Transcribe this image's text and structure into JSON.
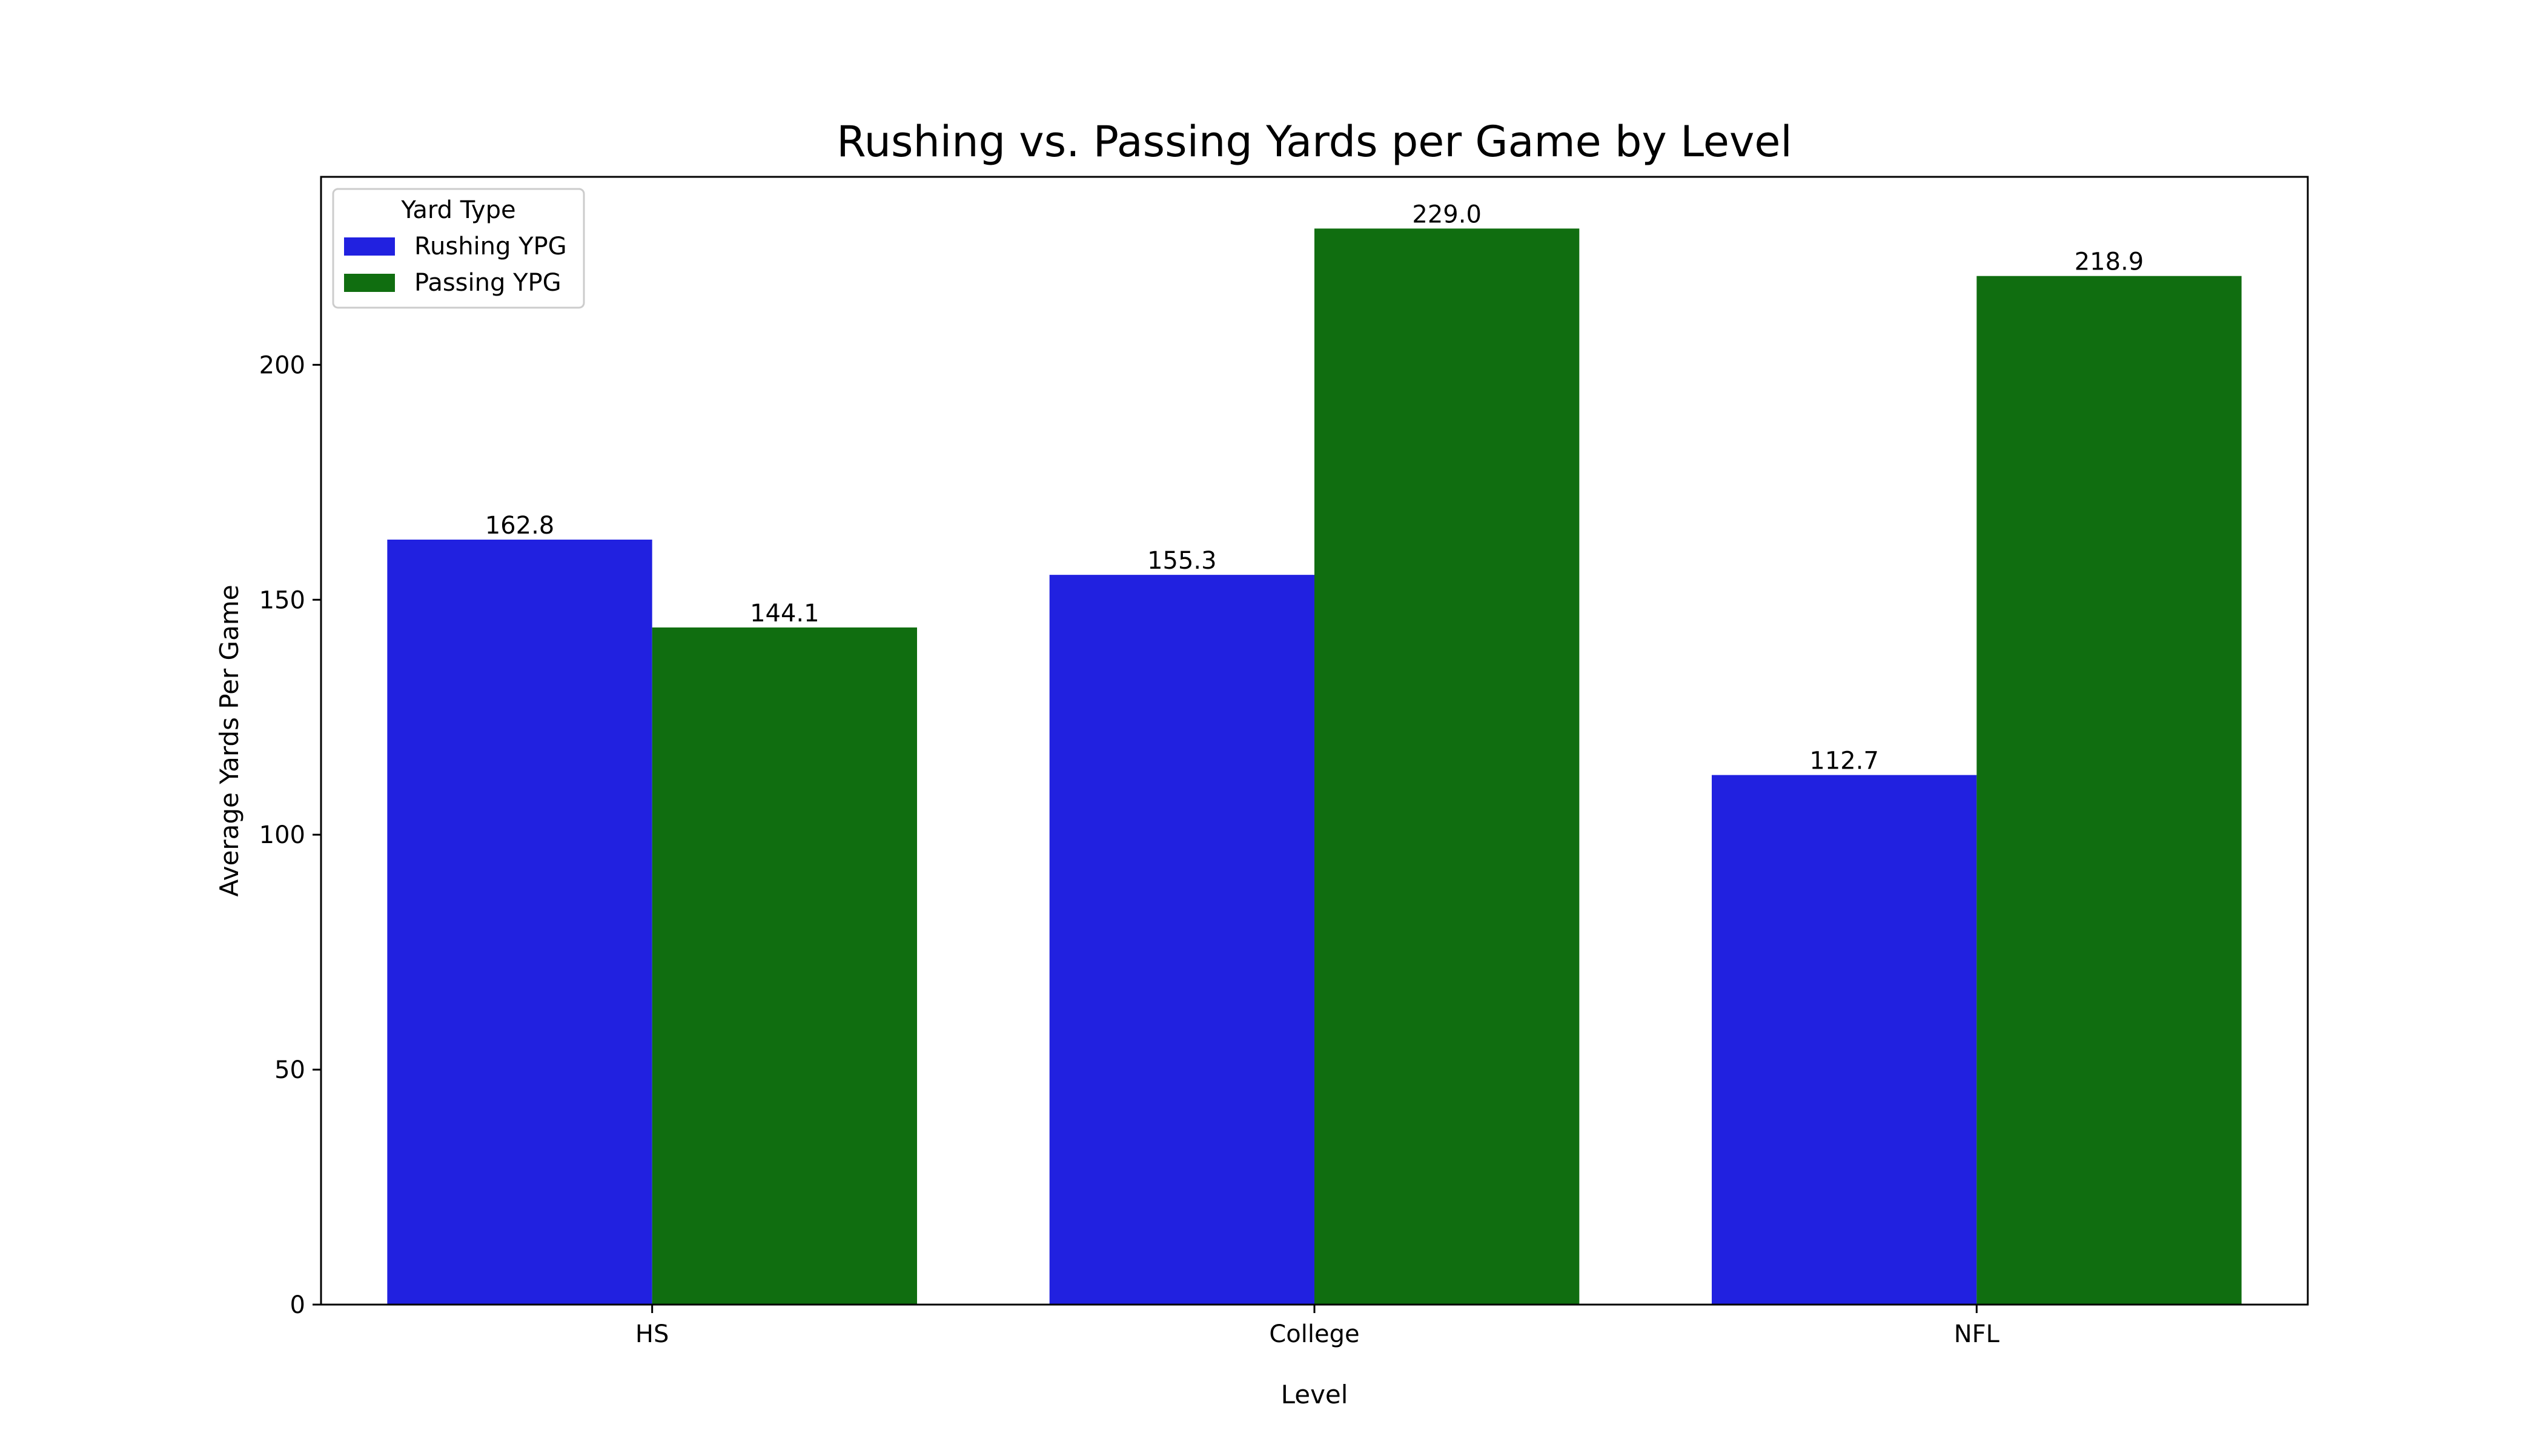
{
  "chart_data": {
    "type": "bar",
    "title": "Rushing vs. Passing Yards per Game by Level",
    "xlabel": "Level",
    "ylabel": "Average Yards Per Game",
    "categories": [
      "HS",
      "College",
      "NFL"
    ],
    "ylim": [
      0,
      240
    ],
    "yticks": [
      0,
      50,
      100,
      150,
      200
    ],
    "grid": false,
    "legend": {
      "title": "Yard Type",
      "placement": "top-left"
    },
    "series": [
      {
        "name": "Rushing YPG",
        "values": [
          162.8,
          155.3,
          112.7
        ],
        "color": "#2121e0",
        "labels": [
          "162.8",
          "155.3",
          "112.7"
        ]
      },
      {
        "name": "Passing YPG",
        "values": [
          144.1,
          229.0,
          218.9
        ],
        "color": "#106e10",
        "labels": [
          "144.1",
          "229.0",
          "218.9"
        ]
      }
    ]
  }
}
